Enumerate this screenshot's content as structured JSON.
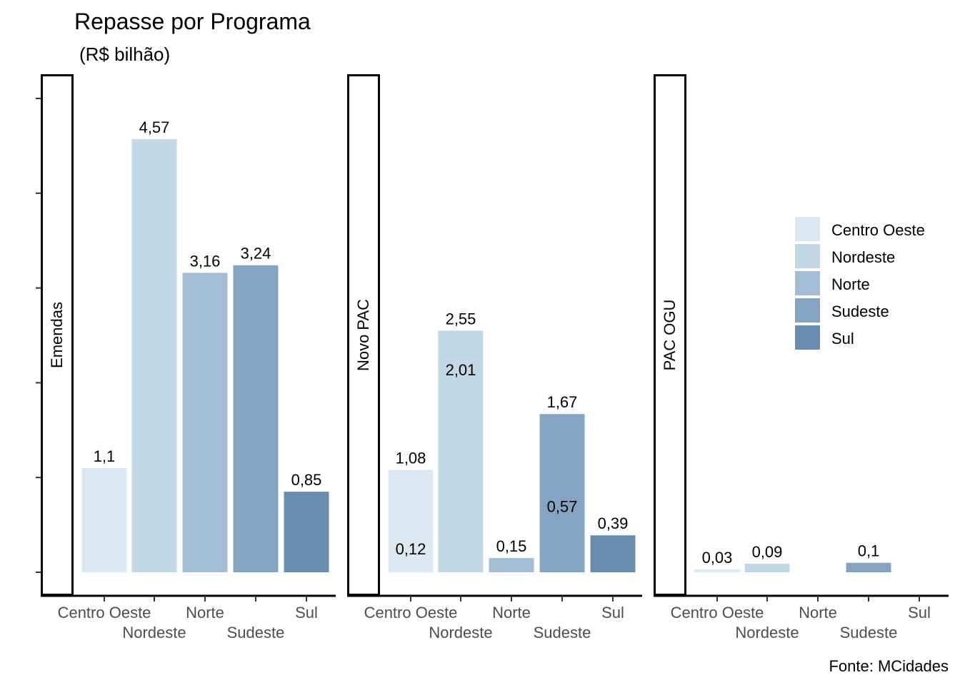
{
  "chart_data": {
    "type": "bar",
    "title": "Repasse por Programa",
    "subtitle": "(R$ bilhão)",
    "caption": "Fonte: MCidades",
    "xlabel": "",
    "ylabel": "",
    "ylim": [
      0,
      5
    ],
    "yticks": [
      0,
      1,
      2,
      3,
      4,
      5
    ],
    "categories": [
      "Centro Oeste",
      "Nordeste",
      "Norte",
      "Sudeste",
      "Sul"
    ],
    "colors": {
      "Centro Oeste": "#dce9f3",
      "Nordeste": "#c3d8e5",
      "Norte": "#a3bed4",
      "Sudeste": "#84a4c2",
      "Sul": "#6a8caf"
    },
    "legend": {
      "position": "right",
      "entries": [
        "Centro Oeste",
        "Nordeste",
        "Norte",
        "Sudeste",
        "Sul"
      ]
    },
    "facets": [
      {
        "label": "Emendas",
        "bars": [
          {
            "category": "Centro Oeste",
            "value": 1.1,
            "label": "1,1"
          },
          {
            "category": "Nordeste",
            "value": 4.57,
            "label": "4,57"
          },
          {
            "category": "Norte",
            "value": 3.16,
            "label": "3,16"
          },
          {
            "category": "Sudeste",
            "value": 3.24,
            "label": "3,24"
          },
          {
            "category": "Sul",
            "value": 0.85,
            "label": "0,85"
          }
        ]
      },
      {
        "label": "Novo PAC",
        "bars": [
          {
            "category": "Centro Oeste",
            "value": 1.08,
            "label": "1,08"
          },
          {
            "category": "Centro Oeste",
            "value": 0.12,
            "label": "0,12"
          },
          {
            "category": "Nordeste",
            "value": 2.55,
            "label": "2,55"
          },
          {
            "category": "Nordeste",
            "value": 2.01,
            "label": "2,01"
          },
          {
            "category": "Norte",
            "value": 0.15,
            "label": "0,15"
          },
          {
            "category": "Sudeste",
            "value": 1.67,
            "label": "1,67"
          },
          {
            "category": "Sudeste",
            "value": 0.57,
            "label": "0,57"
          },
          {
            "category": "Sul",
            "value": 0.39,
            "label": "0,39"
          }
        ]
      },
      {
        "label": "PAC OGU",
        "bars": [
          {
            "category": "Centro Oeste",
            "value": 0.03,
            "label": "0,03"
          },
          {
            "category": "Nordeste",
            "value": 0.09,
            "label": "0,09"
          },
          {
            "category": "Sudeste",
            "value": 0.1,
            "label": "0,1"
          }
        ]
      }
    ]
  }
}
